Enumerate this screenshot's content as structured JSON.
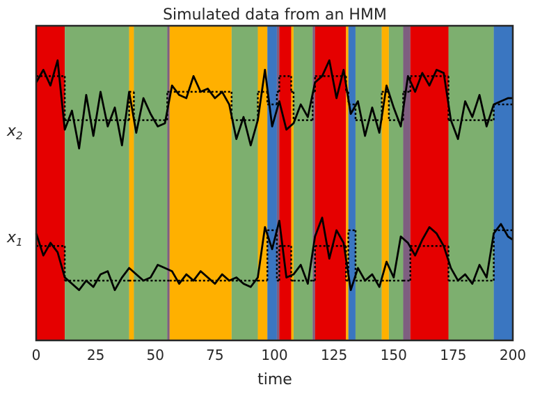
{
  "chart_data": {
    "type": "line",
    "title": "Simulated data from an HMM",
    "xlabel": "time",
    "ylabel": "",
    "xlim": [
      0,
      200
    ],
    "xticks": [
      0,
      25,
      50,
      75,
      100,
      125,
      150,
      175,
      200
    ],
    "ytick_labels": [
      {
        "name": "x",
        "sub": "1"
      },
      {
        "name": "x",
        "sub": "2"
      }
    ],
    "grid": false,
    "background_states": {
      "colors": {
        "red": "#e50000",
        "green": "#7daf6f",
        "yellow": "#ffb000",
        "purple": "#7e5e80",
        "blue": "#3a76c1"
      },
      "segments": [
        {
          "start": 0,
          "end": 12,
          "state": "red"
        },
        {
          "start": 12,
          "end": 39,
          "state": "green"
        },
        {
          "start": 39,
          "end": 41,
          "state": "yellow"
        },
        {
          "start": 41,
          "end": 55,
          "state": "green"
        },
        {
          "start": 55,
          "end": 56,
          "state": "purple"
        },
        {
          "start": 56,
          "end": 82,
          "state": "yellow"
        },
        {
          "start": 82,
          "end": 93,
          "state": "green"
        },
        {
          "start": 93,
          "end": 97,
          "state": "yellow"
        },
        {
          "start": 97,
          "end": 101,
          "state": "blue"
        },
        {
          "start": 101,
          "end": 102,
          "state": "purple"
        },
        {
          "start": 102,
          "end": 107,
          "state": "red"
        },
        {
          "start": 107,
          "end": 108,
          "state": "yellow"
        },
        {
          "start": 108,
          "end": 116,
          "state": "green"
        },
        {
          "start": 116,
          "end": 117,
          "state": "purple"
        },
        {
          "start": 117,
          "end": 130,
          "state": "red"
        },
        {
          "start": 130,
          "end": 131,
          "state": "yellow"
        },
        {
          "start": 131,
          "end": 134,
          "state": "blue"
        },
        {
          "start": 134,
          "end": 145,
          "state": "green"
        },
        {
          "start": 145,
          "end": 148,
          "state": "yellow"
        },
        {
          "start": 148,
          "end": 154,
          "state": "green"
        },
        {
          "start": 154,
          "end": 157,
          "state": "purple"
        },
        {
          "start": 157,
          "end": 173,
          "state": "red"
        },
        {
          "start": 173,
          "end": 192,
          "state": "green"
        },
        {
          "start": 192,
          "end": 200,
          "state": "blue"
        }
      ]
    },
    "state_means": {
      "x2": {
        "red": 8.4,
        "green": 7.0,
        "yellow": 7.9,
        "purple": 7.9,
        "blue": 7.5
      },
      "x1": {
        "red": 3.0,
        "green": 1.9,
        "yellow": 1.9,
        "purple": 1.9,
        "blue": 3.5
      }
    },
    "series": [
      {
        "x": [
          0,
          3,
          6,
          9,
          12,
          15,
          18,
          21,
          24,
          27,
          30,
          33,
          36,
          39,
          42,
          45,
          48,
          51,
          54,
          57,
          60,
          63,
          66,
          69,
          72,
          75,
          78,
          81,
          84,
          87,
          90,
          93,
          96,
          99,
          102,
          105,
          108,
          111,
          114,
          117,
          120,
          123,
          126,
          129,
          132,
          135,
          138,
          141,
          144,
          147,
          150,
          153,
          156,
          159,
          162,
          165,
          168,
          171,
          174,
          177,
          180,
          183,
          186,
          189,
          192,
          195,
          198,
          200
        ],
        "y": [
          8.2,
          8.6,
          8.1,
          8.9,
          6.7,
          7.3,
          6.1,
          7.8,
          6.5,
          7.9,
          6.8,
          7.4,
          6.2,
          7.9,
          6.6,
          7.7,
          7.2,
          6.8,
          6.9,
          8.1,
          7.8,
          7.7,
          8.4,
          7.9,
          8.0,
          7.7,
          7.9,
          7.5,
          6.4,
          7.1,
          6.2,
          7.0,
          8.6,
          6.8,
          7.6,
          6.7,
          6.9,
          7.5,
          7.1,
          8.2,
          8.4,
          8.9,
          7.7,
          8.6,
          7.2,
          7.6,
          6.5,
          7.4,
          6.6,
          8.1,
          7.4,
          6.8,
          8.4,
          7.9,
          8.5,
          8.1,
          8.6,
          8.5,
          7.0,
          6.4,
          7.6,
          7.1,
          7.8,
          6.8,
          7.5,
          7.6,
          7.7,
          7.7
        ]
      },
      {
        "x": [
          0,
          3,
          6,
          9,
          12,
          15,
          18,
          21,
          24,
          27,
          30,
          33,
          36,
          39,
          42,
          45,
          48,
          51,
          54,
          57,
          60,
          63,
          66,
          69,
          72,
          75,
          78,
          81,
          84,
          87,
          90,
          93,
          96,
          99,
          102,
          105,
          108,
          111,
          114,
          117,
          120,
          123,
          126,
          129,
          132,
          135,
          138,
          141,
          144,
          147,
          150,
          153,
          156,
          159,
          162,
          165,
          168,
          171,
          174,
          177,
          180,
          183,
          186,
          189,
          192,
          195,
          198,
          200
        ],
        "y": [
          3.4,
          2.7,
          3.1,
          2.8,
          2.0,
          1.8,
          1.6,
          1.9,
          1.7,
          2.1,
          2.2,
          1.6,
          2.0,
          2.3,
          2.1,
          1.9,
          2.0,
          2.4,
          2.3,
          2.2,
          1.8,
          2.1,
          1.9,
          2.2,
          2.0,
          1.8,
          2.1,
          1.9,
          2.0,
          1.8,
          1.7,
          2.0,
          3.6,
          2.9,
          3.8,
          2.0,
          2.1,
          2.4,
          1.8,
          3.3,
          3.9,
          2.6,
          3.5,
          3.1,
          1.6,
          2.3,
          1.9,
          2.1,
          1.7,
          2.5,
          2.0,
          3.3,
          3.1,
          2.7,
          3.2,
          3.6,
          3.4,
          3.0,
          2.3,
          1.9,
          2.1,
          1.8,
          2.4,
          2.0,
          3.4,
          3.7,
          3.3,
          3.2
        ]
      }
    ]
  }
}
